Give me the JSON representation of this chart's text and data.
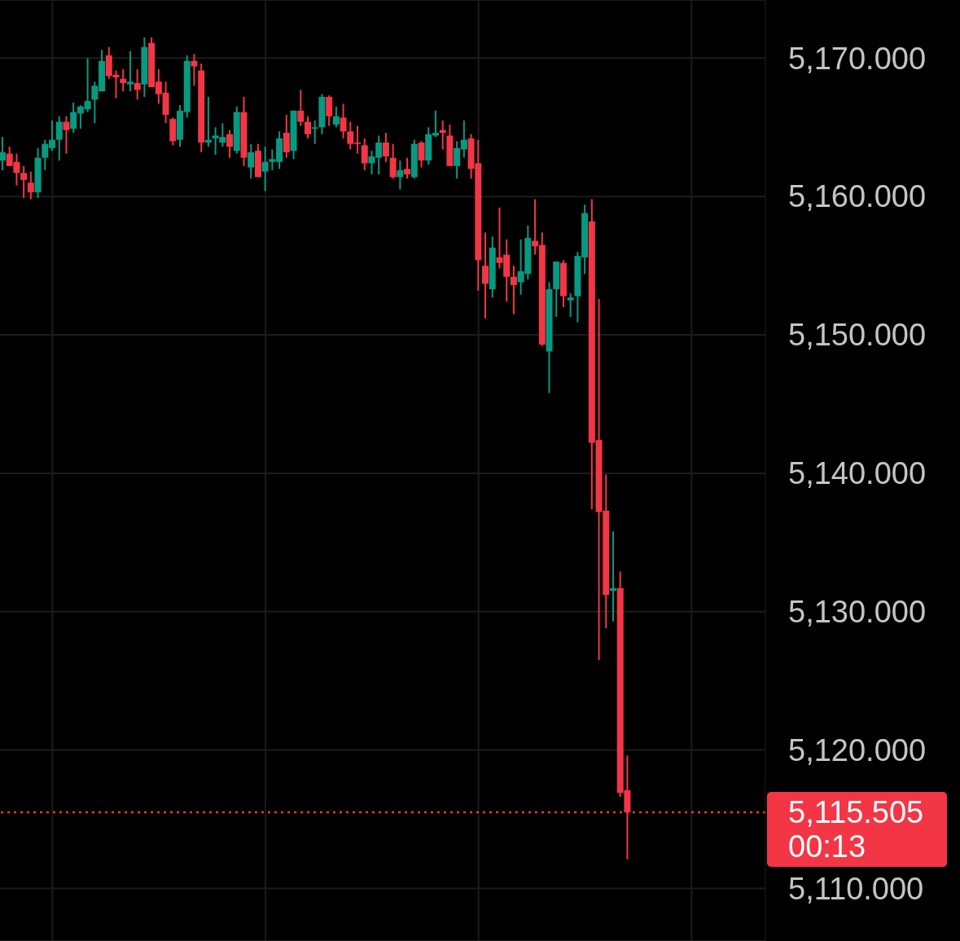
{
  "chart_data": {
    "type": "candlestick",
    "categories": [
      null,
      null,
      null,
      null,
      null,
      null,
      null,
      null,
      null,
      null,
      null,
      null,
      null,
      null,
      null,
      null,
      null,
      null,
      null,
      null,
      null,
      null,
      null,
      null,
      null,
      null,
      null,
      null,
      null,
      null,
      null,
      null,
      null,
      null,
      null,
      null,
      null,
      null,
      null,
      null,
      null,
      null,
      null,
      null,
      null,
      null,
      null,
      null,
      null,
      null,
      null,
      null,
      null,
      null,
      null,
      null,
      null,
      null,
      null,
      null,
      null,
      null,
      null,
      null,
      null,
      null,
      null,
      null,
      null,
      null,
      null,
      null,
      null,
      null,
      null,
      null,
      null,
      null,
      null,
      null,
      null,
      null,
      null,
      null,
      null,
      null,
      null,
      null,
      null
    ],
    "ohlc": [
      [
        5162.6,
        5164.3,
        5161.9,
        5163.2
      ],
      [
        5163.1,
        5163.6,
        5162.2,
        5162.2
      ],
      [
        5162.5,
        5163.1,
        5160.8,
        5161.7
      ],
      [
        5161.7,
        5162.2,
        5159.9,
        5161.2
      ],
      [
        5161.0,
        5161.8,
        5159.8,
        5160.3
      ],
      [
        5160.3,
        5163.5,
        5159.9,
        5162.8
      ],
      [
        5162.8,
        5164.1,
        5161.9,
        5163.8
      ],
      [
        5163.5,
        5165.5,
        5163.3,
        5164.1
      ],
      [
        5164.1,
        5165.8,
        5162.6,
        5165.4
      ],
      [
        5165.4,
        5165.8,
        5163.1,
        5164.8
      ],
      [
        5164.9,
        5166.8,
        5164.6,
        5166.1
      ],
      [
        5166.0,
        5166.6,
        5164.9,
        5166.5
      ],
      [
        5166.3,
        5170.0,
        5166.1,
        5166.9
      ],
      [
        5167.0,
        5168.3,
        5165.3,
        5168.0
      ],
      [
        5167.6,
        5170.6,
        5167.6,
        5169.8
      ],
      [
        5170.2,
        5170.8,
        5168.5,
        5168.7
      ],
      [
        5168.8,
        5169.1,
        5167.1,
        5168.6
      ],
      [
        5168.5,
        5169.2,
        5167.6,
        5168.2
      ],
      [
        5168.1,
        5170.5,
        5167.6,
        5168.3
      ],
      [
        5168.2,
        5169.2,
        5167.0,
        5167.7
      ],
      [
        5168.1,
        5171.5,
        5167.2,
        5170.8
      ],
      [
        5171.1,
        5171.5,
        5167.9,
        5167.9
      ],
      [
        5168.3,
        5169.2,
        5166.7,
        5167.4
      ],
      [
        5167.5,
        5168.3,
        5165.3,
        5165.9
      ],
      [
        5165.6,
        5165.7,
        5163.7,
        5164.0
      ],
      [
        5164.1,
        5166.6,
        5163.6,
        5166.2
      ],
      [
        5166.1,
        5170.2,
        5165.7,
        5169.8
      ],
      [
        5169.8,
        5170.3,
        5168.0,
        5169.4
      ],
      [
        5169.1,
        5169.6,
        5163.2,
        5163.9
      ],
      [
        5163.9,
        5167.2,
        5163.6,
        5164.1
      ],
      [
        5164.2,
        5165.0,
        5163.0,
        5164.4
      ],
      [
        5163.9,
        5165.3,
        5163.6,
        5164.3
      ],
      [
        5164.5,
        5164.8,
        5162.8,
        5163.6
      ],
      [
        5163.3,
        5166.5,
        5163.1,
        5166.1
      ],
      [
        5166.1,
        5167.2,
        5162.2,
        5162.8
      ],
      [
        5162.1,
        5163.8,
        5161.3,
        5163.2
      ],
      [
        5163.3,
        5163.8,
        5161.4,
        5161.4
      ],
      [
        5161.8,
        5163.6,
        5160.4,
        5162.5
      ],
      [
        5162.5,
        5163.4,
        5161.9,
        5162.7
      ],
      [
        5162.5,
        5164.7,
        5162.0,
        5164.2
      ],
      [
        5164.6,
        5165.9,
        5162.8,
        5163.2
      ],
      [
        5163.3,
        5166.2,
        5162.7,
        5166.2
      ],
      [
        5166.2,
        5167.7,
        5165.1,
        5165.4
      ],
      [
        5165.4,
        5165.8,
        5164.2,
        5164.5
      ],
      [
        5164.9,
        5165.5,
        5163.8,
        5165.0
      ],
      [
        5165.0,
        5167.4,
        5164.5,
        5167.2
      ],
      [
        5167.2,
        5167.3,
        5165.1,
        5165.8
      ],
      [
        5165.2,
        5166.5,
        5165.0,
        5165.8
      ],
      [
        5165.7,
        5166.7,
        5164.2,
        5164.7
      ],
      [
        5164.7,
        5165.4,
        5163.4,
        5163.8
      ],
      [
        5163.9,
        5165.1,
        5163.1,
        5163.8
      ],
      [
        5163.7,
        5164.2,
        5161.9,
        5162.4
      ],
      [
        5162.4,
        5163.3,
        5161.6,
        5162.9
      ],
      [
        5162.8,
        5164.4,
        5161.6,
        5163.9
      ],
      [
        5163.9,
        5164.6,
        5162.5,
        5162.9
      ],
      [
        5162.8,
        5163.8,
        5161.3,
        5161.4
      ],
      [
        5161.4,
        5162.6,
        5160.5,
        5161.9
      ],
      [
        5162.0,
        5162.8,
        5161.3,
        5161.6
      ],
      [
        5161.4,
        5164.1,
        5161.3,
        5163.8
      ],
      [
        5163.9,
        5164.0,
        5162.1,
        5162.6
      ],
      [
        5162.6,
        5165.0,
        5162.3,
        5164.5
      ],
      [
        5164.4,
        5166.2,
        5164.3,
        5164.6
      ],
      [
        5164.8,
        5165.5,
        5163.4,
        5164.6
      ],
      [
        5164.4,
        5165.2,
        5162.2,
        5162.2
      ],
      [
        5162.2,
        5164.0,
        5161.3,
        5163.5
      ],
      [
        5163.4,
        5165.5,
        5162.8,
        5164.1
      ],
      [
        5164.2,
        5164.5,
        5161.3,
        5162.0
      ],
      [
        5162.4,
        5164.1,
        5153.2,
        5155.4
      ],
      [
        5155.0,
        5157.4,
        5151.2,
        5153.7
      ],
      [
        5153.3,
        5157.1,
        5152.7,
        5156.3
      ],
      [
        5155.6,
        5159.2,
        5154.8,
        5155.2
      ],
      [
        5155.8,
        5156.9,
        5152.4,
        5154.2
      ],
      [
        5154.2,
        5155.0,
        5151.5,
        5153.6
      ],
      [
        5153.8,
        5156.9,
        5152.9,
        5154.6
      ],
      [
        5154.4,
        5157.9,
        5154.0,
        5157.0
      ],
      [
        5156.8,
        5159.8,
        5155.8,
        5156.4
      ],
      [
        5156.5,
        5157.4,
        5149.2,
        5149.3
      ],
      [
        5148.8,
        5153.8,
        5145.8,
        5153.3
      ],
      [
        5153.3,
        5155.3,
        5151.3,
        5155.3
      ],
      [
        5155.2,
        5155.4,
        5152.0,
        5152.8
      ],
      [
        5152.5,
        5153.0,
        5151.3,
        5152.7
      ],
      [
        5152.8,
        5156.0,
        5150.9,
        5155.7
      ],
      [
        5155.6,
        5159.4,
        5154.4,
        5158.8
      ],
      [
        5158.2,
        5159.8,
        5137.4,
        5142.2
      ],
      [
        5142.4,
        5152.6,
        5126.5,
        5137.2
      ],
      [
        5137.3,
        5139.9,
        5128.8,
        5131.2
      ],
      [
        5131.5,
        5135.8,
        5129.3,
        5131.7
      ],
      [
        5131.7,
        5132.9,
        5116.6,
        5116.9
      ],
      [
        5117.1,
        5119.6,
        5112.1,
        5115.5
      ]
    ],
    "colors": [
      "#089981",
      "#f23645",
      "#f23645",
      "#f23645",
      "#f23645",
      "#089981",
      "#089981",
      "#089981",
      "#089981",
      "#f23645",
      "#089981",
      "#089981",
      "#089981",
      "#089981",
      "#089981",
      "#f23645",
      "#f23645",
      "#f23645",
      "#089981",
      "#f23645",
      "#089981",
      "#f23645",
      "#f23645",
      "#f23645",
      "#f23645",
      "#089981",
      "#089981",
      "#f23645",
      "#f23645",
      "#089981",
      "#089981",
      "#089981",
      "#f23645",
      "#089981",
      "#f23645",
      "#089981",
      "#f23645",
      "#089981",
      "#089981",
      "#089981",
      "#f23645",
      "#089981",
      "#f23645",
      "#f23645",
      "#089981",
      "#089981",
      "#f23645",
      "#089981",
      "#f23645",
      "#f23645",
      "#f23645",
      "#f23645",
      "#089981",
      "#089981",
      "#f23645",
      "#f23645",
      "#089981",
      "#f23645",
      "#089981",
      "#f23645",
      "#089981",
      "#089981",
      "#f23645",
      "#f23645",
      "#089981",
      "#089981",
      "#f23645",
      "#f23645",
      "#f23645",
      "#089981",
      "#f23645",
      "#f23645",
      "#f23645",
      "#089981",
      "#089981",
      "#f23645",
      "#f23645",
      "#089981",
      "#089981",
      "#f23645",
      "#089981",
      "#089981",
      "#089981",
      "#f23645",
      "#f23645",
      "#f23645",
      "#089981",
      "#f23645",
      "#f23645"
    ],
    "ylim": [
      5106.2,
      5174.2
    ],
    "yticks": [
      {
        "value": 5110,
        "label": "5,110.000"
      },
      {
        "value": 5120,
        "label": "5,120.000"
      },
      {
        "value": 5130,
        "label": "5,130.000"
      },
      {
        "value": 5140,
        "label": "5,140.000"
      },
      {
        "value": 5150,
        "label": "5,150.000"
      },
      {
        "value": 5160,
        "label": "5,160.000"
      },
      {
        "value": 5170,
        "label": "5,170.000"
      }
    ],
    "tick_labels": "y",
    "grid": true,
    "ref_lines": [
      {
        "axis": "y",
        "value": 5115.505,
        "label": "5,115.505",
        "color": "#f23645",
        "line_style": "dotted"
      }
    ],
    "annotations": [
      "00:13"
    ]
  }
}
